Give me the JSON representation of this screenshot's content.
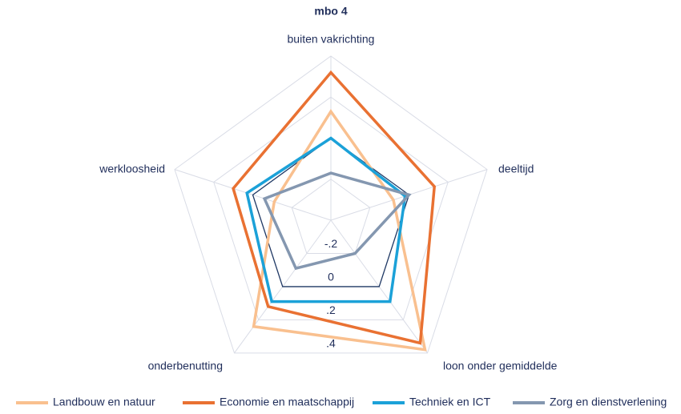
{
  "chart_data": {
    "type": "radar",
    "title": "mbo 4",
    "categories": [
      "buiten vakrichting",
      "deeltijd",
      "loon onder gemiddelde",
      "onderbenutting",
      "werkloosheid"
    ],
    "series": [
      {
        "name": "Landbouw en natuur",
        "color": "#f9c08f",
        "values": [
          0.13,
          -0.08,
          0.38,
          0.24,
          -0.11
        ]
      },
      {
        "name": "Economie en maatschappij",
        "color": "#e97132",
        "values": [
          0.32,
          0.13,
          0.34,
          0.12,
          0.1
        ]
      },
      {
        "name": "Techniek en ICT",
        "color": "#1ba1d8",
        "values": [
          0.0,
          -0.02,
          0.09,
          0.09,
          0.03
        ]
      },
      {
        "name": "Zorg en dienstverlening",
        "color": "#8497b0",
        "values": [
          -0.17,
          0.0,
          -0.2,
          -0.11,
          -0.06
        ]
      }
    ],
    "ylim": [
      -0.4,
      0.4
    ],
    "yticks": [
      {
        "value": -0.2,
        "label": "-.2"
      },
      0,
      {
        "value": 0.2,
        "label": ".2"
      },
      {
        "value": 0.4,
        "label": ".4"
      }
    ],
    "grid": true,
    "legend": "bottom"
  }
}
